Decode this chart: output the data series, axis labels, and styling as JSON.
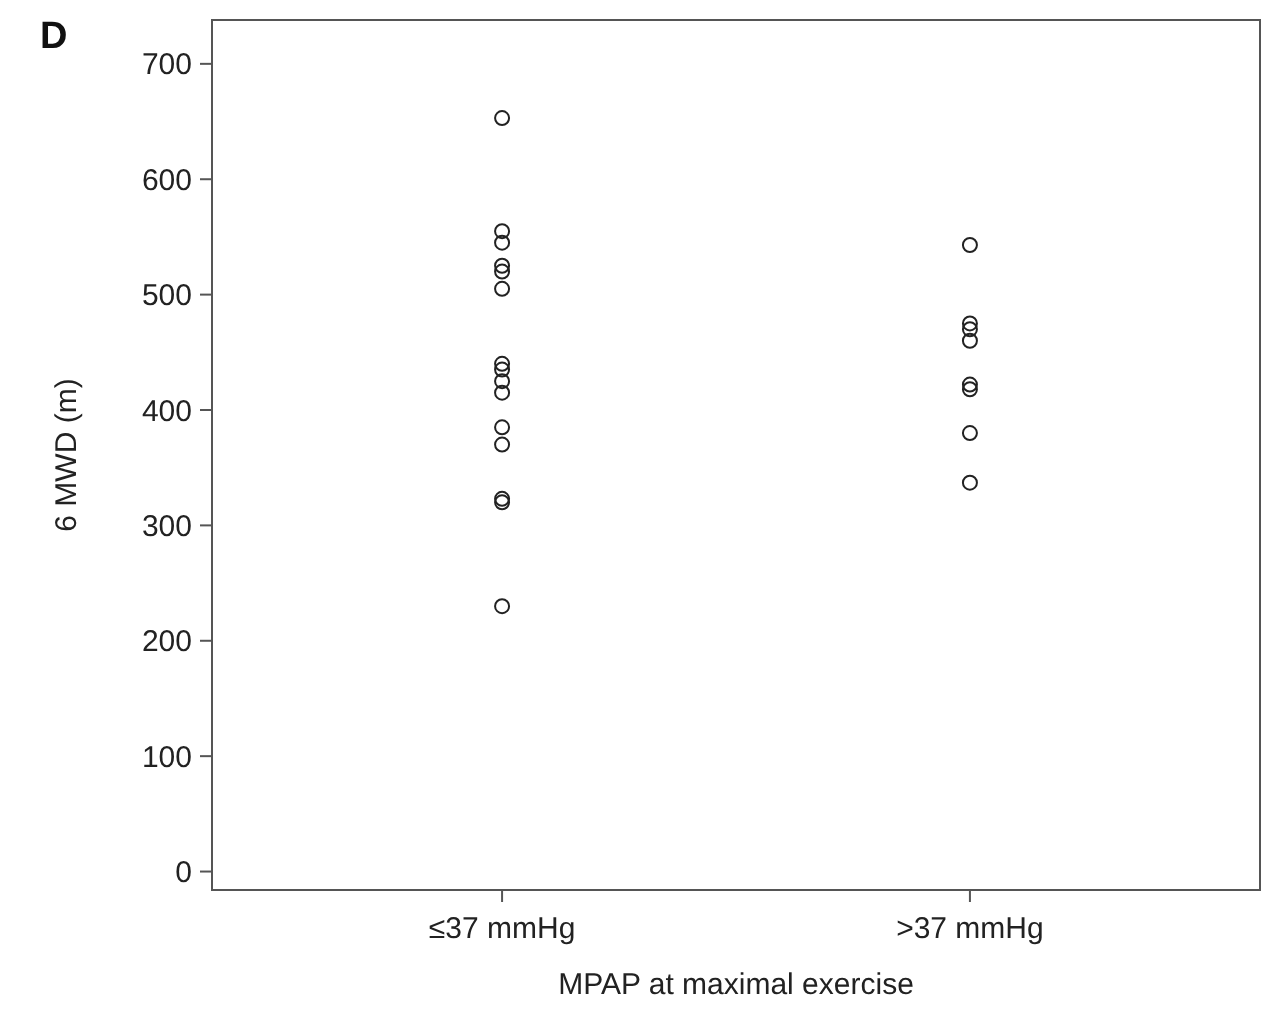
{
  "chart_data": {
    "type": "scatter",
    "xlabel": "MPAP at maximal exercise",
    "ylabel": "6 MWD (m)",
    "annotations": [
      "D"
    ],
    "categories": [
      "≤37 mmHg",
      ">37 mmHg"
    ],
    "ylim": [
      -16,
      738
    ],
    "yticks": [
      0,
      100,
      200,
      300,
      400,
      500,
      600,
      700
    ],
    "marker": "circle",
    "series": [
      {
        "color": "#222222",
        "x": [
          "≤37 mmHg",
          "≤37 mmHg",
          "≤37 mmHg",
          "≤37 mmHg",
          "≤37 mmHg",
          "≤37 mmHg",
          "≤37 mmHg",
          "≤37 mmHg",
          "≤37 mmHg",
          "≤37 mmHg",
          "≤37 mmHg",
          "≤37 mmHg",
          "≤37 mmHg",
          "≤37 mmHg",
          "≤37 mmHg"
        ],
        "values": [
          653,
          555,
          545,
          525,
          520,
          505,
          440,
          435,
          425,
          415,
          385,
          370,
          323,
          320,
          230
        ]
      },
      {
        "color": "#222222",
        "x": [
          ">37 mmHg",
          ">37 mmHg",
          ">37 mmHg",
          ">37 mmHg",
          ">37 mmHg",
          ">37 mmHg",
          ">37 mmHg",
          ">37 mmHg"
        ],
        "values": [
          543,
          475,
          470,
          460,
          422,
          418,
          380,
          337
        ]
      }
    ]
  }
}
